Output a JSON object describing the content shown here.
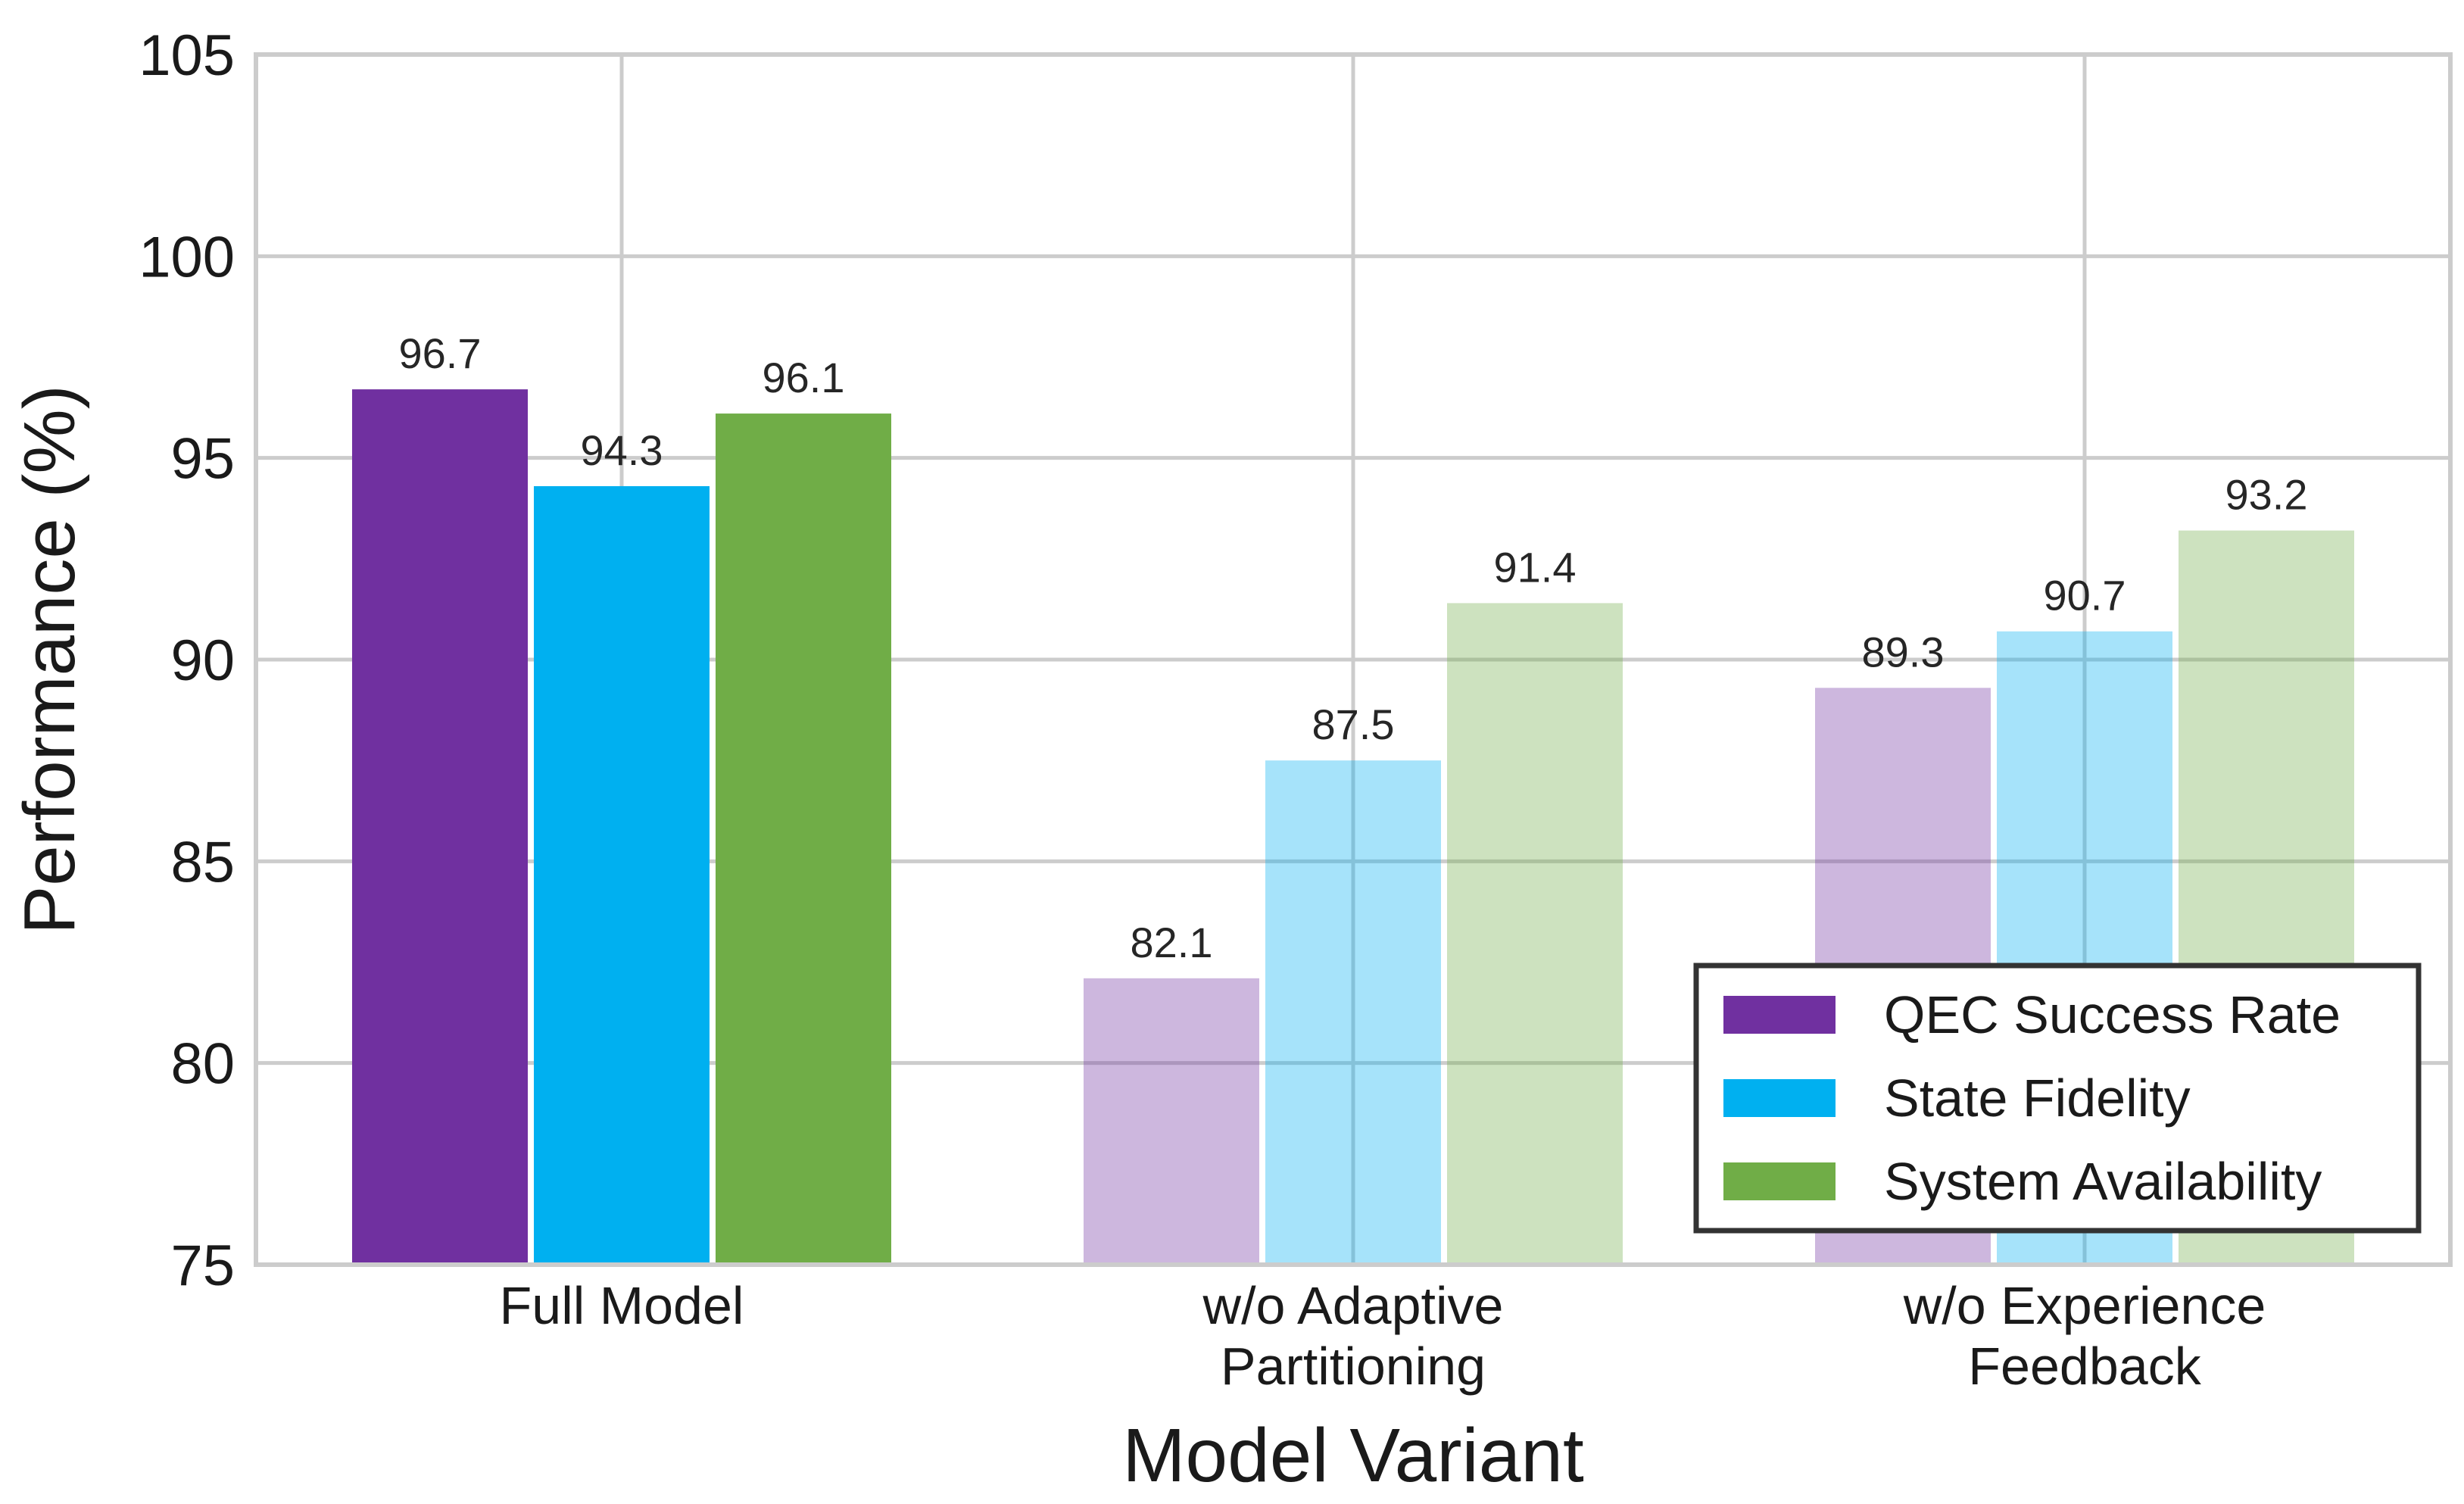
{
  "chart_data": {
    "type": "bar",
    "title": "",
    "xlabel": "Model Variant",
    "ylabel": "Performance (%)",
    "ylim": [
      75,
      105
    ],
    "yticks": [
      75,
      80,
      85,
      90,
      95,
      100,
      105
    ],
    "grid": true,
    "legend_position": "bottom-right",
    "categories": [
      [
        "Full Model"
      ],
      [
        "w/o Adaptive",
        "Partitioning"
      ],
      [
        "w/o Experience",
        "Feedback"
      ]
    ],
    "category_opacity": [
      1.0,
      0.35,
      0.35
    ],
    "series": [
      {
        "name": "QEC Success Rate",
        "color": "#7030a0",
        "values": [
          96.7,
          82.1,
          89.3
        ]
      },
      {
        "name": "State Fidelity",
        "color": "#00b0f0",
        "values": [
          94.3,
          87.5,
          90.7
        ]
      },
      {
        "name": "System Availability",
        "color": "#70ad47",
        "values": [
          96.1,
          91.4,
          93.2
        ]
      }
    ]
  }
}
